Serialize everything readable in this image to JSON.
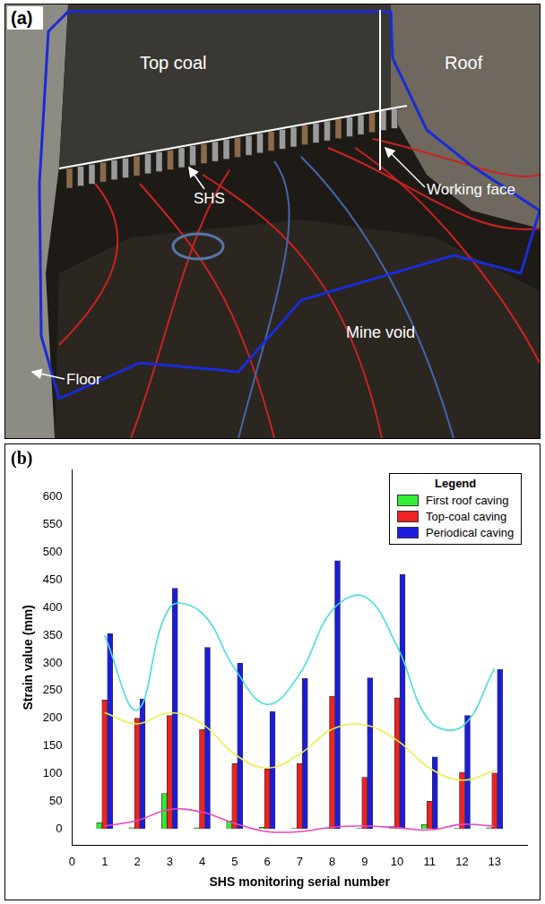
{
  "photo_panel": {
    "letter": "(a)",
    "labels": {
      "top_coal": "Top coal",
      "roof": "Roof",
      "working_face": "Working face",
      "shs": "SHS",
      "floor": "Floor",
      "mine_void": "Mine void"
    }
  },
  "chart_data": {
    "type": "bar",
    "panel_letter": "(b)",
    "x_label": "SHS monitoring serial number",
    "y_label": "Strain value (mm)",
    "legend_title": "Legend",
    "legend": "upper right",
    "grid": false,
    "x": [
      1,
      2,
      3,
      4,
      5,
      6,
      7,
      8,
      9,
      10,
      11,
      12,
      13
    ],
    "xlim": [
      0,
      14
    ],
    "xticks": [
      0,
      1,
      2,
      3,
      4,
      5,
      6,
      7,
      8,
      9,
      10,
      11,
      12,
      13
    ],
    "ylim": [
      -30,
      650
    ],
    "yticks": [
      0,
      50,
      100,
      150,
      200,
      250,
      300,
      350,
      400,
      450,
      500,
      550,
      600
    ],
    "series": [
      {
        "name": "First roof caving",
        "color": "#33ee33",
        "values": [
          11,
          2,
          64,
          2,
          14,
          3,
          1,
          1,
          1,
          4,
          8,
          1,
          2
        ]
      },
      {
        "name": "Top-coal caving",
        "color": "#ee2222",
        "values": [
          233,
          200,
          205,
          180,
          118,
          108,
          118,
          240,
          93,
          237,
          50,
          102,
          101
        ]
      },
      {
        "name": "Periodical caving",
        "color": "#1c1cdd",
        "values": [
          353,
          235,
          435,
          328,
          300,
          212,
          272,
          485,
          273,
          460,
          130,
          205,
          288
        ]
      },
      {
        "type": "line",
        "color": "#44dddd",
        "values": [
          350,
          215,
          400,
          390,
          290,
          225,
          280,
          395,
          420,
          330,
          195,
          185,
          290
        ]
      },
      {
        "type": "line",
        "color": "#eeee44",
        "values": [
          210,
          190,
          210,
          190,
          135,
          110,
          135,
          180,
          188,
          160,
          110,
          88,
          105
        ]
      },
      {
        "type": "line",
        "color": "#ee44bb",
        "values": [
          5,
          15,
          35,
          30,
          10,
          -5,
          -5,
          3,
          5,
          2,
          -2,
          8,
          5
        ]
      }
    ]
  }
}
